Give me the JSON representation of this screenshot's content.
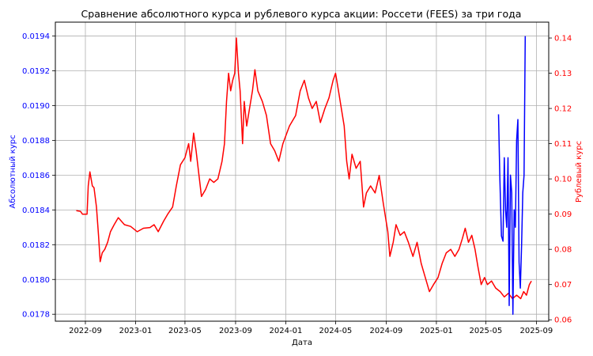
{
  "chart_data": {
    "type": "line",
    "title": "Сравнение абсолютного курса и рублевого курса акции: Россети (FEES) за три года",
    "xlabel": "Дата",
    "ylabel_left": "Абсолютный курс",
    "ylabel_right": "Рублевый курс",
    "colors": {
      "left_axis": "#0000ff",
      "right_axis": "#ff0000",
      "grid": "#b0b0b0"
    },
    "grid": true,
    "x_ticks": [
      "2022-09",
      "2023-01",
      "2023-05",
      "2023-09",
      "2024-01",
      "2024-05",
      "2024-09",
      "2025-01",
      "2025-05",
      "2025-09"
    ],
    "x_range": [
      "2022-06-20",
      "2025-10-01"
    ],
    "y_left": {
      "range": [
        0.01776,
        0.01948
      ],
      "ticks": [
        "0.0178",
        "0.0180",
        "0.0182",
        "0.0184",
        "0.0186",
        "0.0188",
        "0.0190",
        "0.0192",
        "0.0194"
      ]
    },
    "y_right": {
      "range": [
        0.0596,
        0.1445
      ],
      "ticks": [
        "0.06",
        "0.07",
        "0.08",
        "0.09",
        "0.10",
        "0.11",
        "0.12",
        "0.13",
        "0.14"
      ]
    },
    "series": [
      {
        "axis": "right",
        "color": "#ff0000",
        "points": [
          [
            "2022-08-10",
            0.091
          ],
          [
            "2022-08-20",
            0.0908
          ],
          [
            "2022-08-25",
            0.09
          ],
          [
            "2022-09-05",
            0.09
          ],
          [
            "2022-09-08",
            0.098
          ],
          [
            "2022-09-12",
            0.102
          ],
          [
            "2022-09-18",
            0.098
          ],
          [
            "2022-09-22",
            0.0975
          ],
          [
            "2022-09-28",
            0.092
          ],
          [
            "2022-10-03",
            0.084
          ],
          [
            "2022-10-07",
            0.0765
          ],
          [
            "2022-10-12",
            0.079
          ],
          [
            "2022-10-18",
            0.08
          ],
          [
            "2022-10-25",
            0.082
          ],
          [
            "2022-11-01",
            0.085
          ],
          [
            "2022-11-10",
            0.087
          ],
          [
            "2022-11-20",
            0.089
          ],
          [
            "2022-12-05",
            0.087
          ],
          [
            "2022-12-20",
            0.0865
          ],
          [
            "2023-01-05",
            0.085
          ],
          [
            "2023-01-20",
            0.086
          ],
          [
            "2023-02-05",
            0.0862
          ],
          [
            "2023-02-15",
            0.087
          ],
          [
            "2023-02-25",
            0.085
          ],
          [
            "2023-03-10",
            0.088
          ],
          [
            "2023-03-20",
            0.09
          ],
          [
            "2023-04-01",
            0.092
          ],
          [
            "2023-04-10",
            0.098
          ],
          [
            "2023-04-20",
            0.104
          ],
          [
            "2023-05-01",
            0.106
          ],
          [
            "2023-05-10",
            0.11
          ],
          [
            "2023-05-15",
            0.105
          ],
          [
            "2023-05-22",
            0.113
          ],
          [
            "2023-05-28",
            0.108
          ],
          [
            "2023-06-05",
            0.1
          ],
          [
            "2023-06-10",
            0.095
          ],
          [
            "2023-06-20",
            0.097
          ],
          [
            "2023-06-30",
            0.1
          ],
          [
            "2023-07-10",
            0.099
          ],
          [
            "2023-07-20",
            0.1
          ],
          [
            "2023-07-30",
            0.105
          ],
          [
            "2023-08-05",
            0.11
          ],
          [
            "2023-08-10",
            0.122
          ],
          [
            "2023-08-15",
            0.13
          ],
          [
            "2023-08-20",
            0.125
          ],
          [
            "2023-08-25",
            0.128
          ],
          [
            "2023-08-30",
            0.13
          ],
          [
            "2023-09-03",
            0.14
          ],
          [
            "2023-09-08",
            0.13
          ],
          [
            "2023-09-12",
            0.125
          ],
          [
            "2023-09-18",
            0.11
          ],
          [
            "2023-09-22",
            0.122
          ],
          [
            "2023-09-28",
            0.115
          ],
          [
            "2023-10-05",
            0.12
          ],
          [
            "2023-10-12",
            0.125
          ],
          [
            "2023-10-18",
            0.131
          ],
          [
            "2023-10-25",
            0.125
          ],
          [
            "2023-11-05",
            0.122
          ],
          [
            "2023-11-15",
            0.118
          ],
          [
            "2023-11-25",
            0.11
          ],
          [
            "2023-12-05",
            0.108
          ],
          [
            "2023-12-15",
            0.105
          ],
          [
            "2023-12-25",
            0.11
          ],
          [
            "2024-01-10",
            0.115
          ],
          [
            "2024-01-25",
            0.118
          ],
          [
            "2024-02-05",
            0.125
          ],
          [
            "2024-02-15",
            0.128
          ],
          [
            "2024-02-25",
            0.123
          ],
          [
            "2024-03-05",
            0.12
          ],
          [
            "2024-03-15",
            0.122
          ],
          [
            "2024-03-25",
            0.116
          ],
          [
            "2024-04-05",
            0.12
          ],
          [
            "2024-04-15",
            0.123
          ],
          [
            "2024-04-25",
            0.128
          ],
          [
            "2024-05-01",
            0.13
          ],
          [
            "2024-05-08",
            0.125
          ],
          [
            "2024-05-15",
            0.12
          ],
          [
            "2024-05-22",
            0.115
          ],
          [
            "2024-05-28",
            0.105
          ],
          [
            "2024-06-03",
            0.1
          ],
          [
            "2024-06-10",
            0.107
          ],
          [
            "2024-06-20",
            0.103
          ],
          [
            "2024-06-30",
            0.105
          ],
          [
            "2024-07-08",
            0.092
          ],
          [
            "2024-07-15",
            0.096
          ],
          [
            "2024-07-25",
            0.098
          ],
          [
            "2024-08-05",
            0.096
          ],
          [
            "2024-08-15",
            0.101
          ],
          [
            "2024-08-25",
            0.093
          ],
          [
            "2024-09-05",
            0.085
          ],
          [
            "2024-09-10",
            0.078
          ],
          [
            "2024-09-18",
            0.082
          ],
          [
            "2024-09-25",
            0.087
          ],
          [
            "2024-10-05",
            0.084
          ],
          [
            "2024-10-15",
            0.085
          ],
          [
            "2024-10-25",
            0.082
          ],
          [
            "2024-11-05",
            0.078
          ],
          [
            "2024-11-15",
            0.082
          ],
          [
            "2024-11-25",
            0.076
          ],
          [
            "2024-12-05",
            0.072
          ],
          [
            "2024-12-15",
            0.068
          ],
          [
            "2024-12-25",
            0.07
          ],
          [
            "2025-01-05",
            0.072
          ],
          [
            "2025-01-15",
            0.076
          ],
          [
            "2025-01-25",
            0.079
          ],
          [
            "2025-02-05",
            0.08
          ],
          [
            "2025-02-15",
            0.078
          ],
          [
            "2025-02-25",
            0.08
          ],
          [
            "2025-03-05",
            0.083
          ],
          [
            "2025-03-12",
            0.086
          ],
          [
            "2025-03-20",
            0.082
          ],
          [
            "2025-03-28",
            0.084
          ],
          [
            "2025-04-05",
            0.08
          ],
          [
            "2025-04-12",
            0.075
          ],
          [
            "2025-04-20",
            0.07
          ],
          [
            "2025-04-28",
            0.072
          ],
          [
            "2025-05-05",
            0.07
          ],
          [
            "2025-05-15",
            0.071
          ],
          [
            "2025-05-25",
            0.069
          ],
          [
            "2025-06-05",
            0.068
          ],
          [
            "2025-06-15",
            0.0665
          ],
          [
            "2025-06-25",
            0.0675
          ],
          [
            "2025-07-05",
            0.066
          ],
          [
            "2025-07-15",
            0.067
          ],
          [
            "2025-07-25",
            0.066
          ],
          [
            "2025-08-01",
            0.068
          ],
          [
            "2025-08-08",
            0.067
          ],
          [
            "2025-08-15",
            0.07
          ],
          [
            "2025-08-20",
            0.071
          ]
        ]
      },
      {
        "axis": "left",
        "color": "#0000ff",
        "points": [
          [
            "2025-06-01",
            0.01895
          ],
          [
            "2025-06-04",
            0.0186
          ],
          [
            "2025-06-08",
            0.01825
          ],
          [
            "2025-06-12",
            0.01822
          ],
          [
            "2025-06-15",
            0.0187
          ],
          [
            "2025-06-18",
            0.0184
          ],
          [
            "2025-06-21",
            0.0183
          ],
          [
            "2025-06-24",
            0.0187
          ],
          [
            "2025-06-27",
            0.01785
          ],
          [
            "2025-06-30",
            0.0186
          ],
          [
            "2025-07-03",
            0.0185
          ],
          [
            "2025-07-06",
            0.0178
          ],
          [
            "2025-07-09",
            0.0184
          ],
          [
            "2025-07-12",
            0.0183
          ],
          [
            "2025-07-15",
            0.0188
          ],
          [
            "2025-07-18",
            0.01892
          ],
          [
            "2025-07-21",
            0.0181
          ],
          [
            "2025-07-24",
            0.01795
          ],
          [
            "2025-07-27",
            0.0182
          ],
          [
            "2025-07-30",
            0.0185
          ],
          [
            "2025-08-02",
            0.0186
          ],
          [
            "2025-08-05",
            0.0194
          ]
        ]
      }
    ]
  }
}
